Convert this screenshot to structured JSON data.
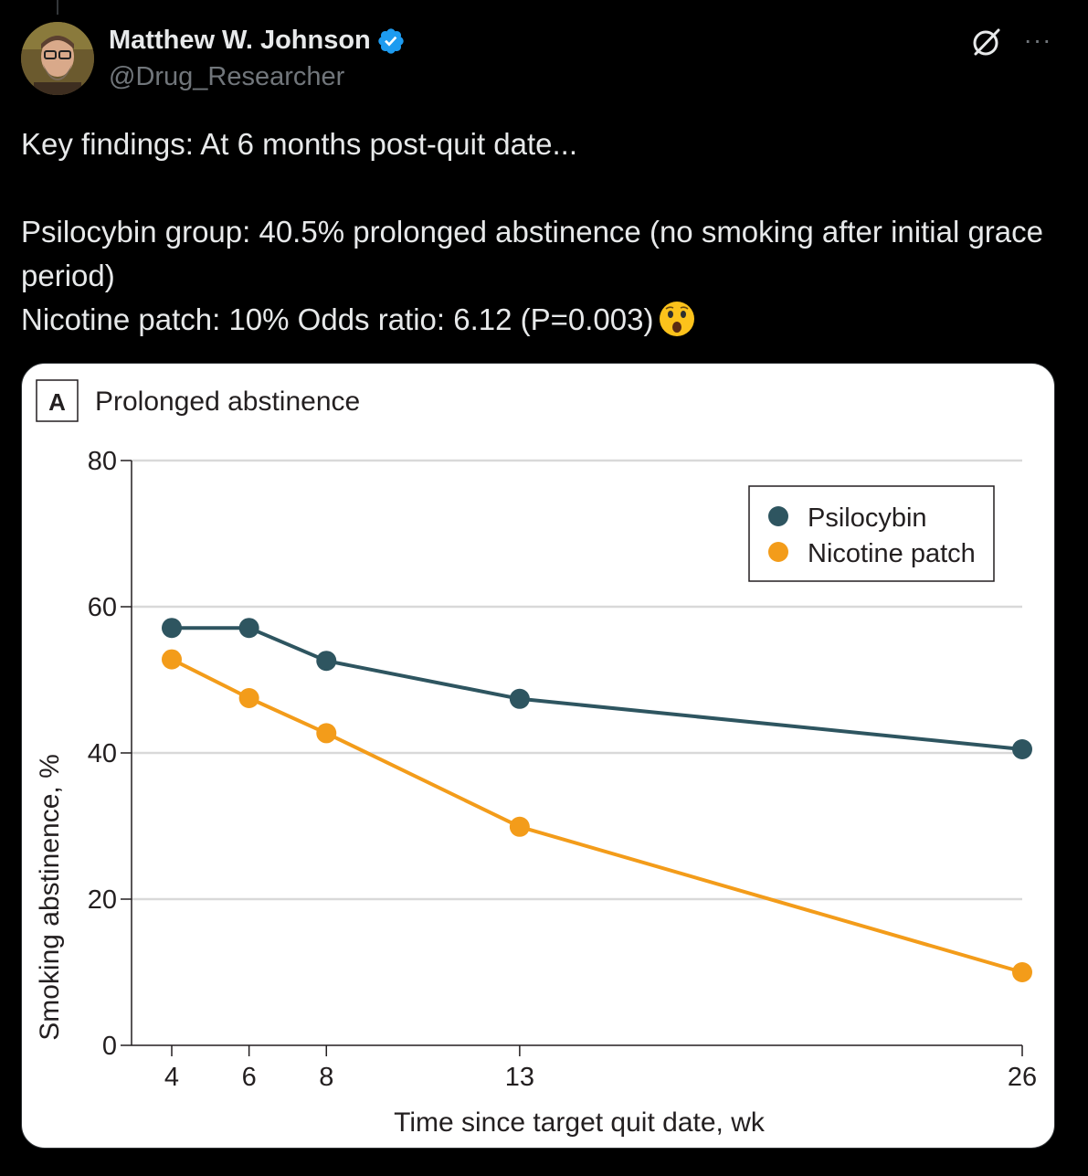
{
  "tweet": {
    "author_name": "Matthew W. Johnson",
    "handle": "@Drug_Researcher",
    "text_lines": [
      "Key findings: At 6 months post-quit date...",
      "Psilocybin group: 40.5% prolonged abstinence (no smoking after initial grace period)",
      "Nicotine patch: 10% Odds ratio: 6.12 (P=0.003)"
    ],
    "emoji": "astonished-face",
    "more_label": "···"
  },
  "colors": {
    "psilocybin": "#2e5560",
    "nicotine": "#f39c1a",
    "verified": "#1d9bf0"
  },
  "chart_data": {
    "type": "line",
    "panel_label": "A",
    "title": "Prolonged abstinence",
    "xlabel": "Time since target quit date, wk",
    "ylabel": "Smoking abstinence, %",
    "ylim": [
      0,
      80
    ],
    "yticks": [
      0,
      20,
      40,
      60,
      80
    ],
    "x": [
      4,
      6,
      8,
      13,
      26
    ],
    "xticks": [
      "4",
      "6",
      "8",
      "13",
      "26"
    ],
    "grid": true,
    "legend_position": "top-right",
    "series": [
      {
        "name": "Psilocybin",
        "values": [
          57.1,
          57.1,
          52.6,
          47.4,
          40.5
        ]
      },
      {
        "name": "Nicotine patch",
        "values": [
          52.8,
          47.5,
          42.7,
          29.9,
          10.0
        ]
      }
    ]
  }
}
